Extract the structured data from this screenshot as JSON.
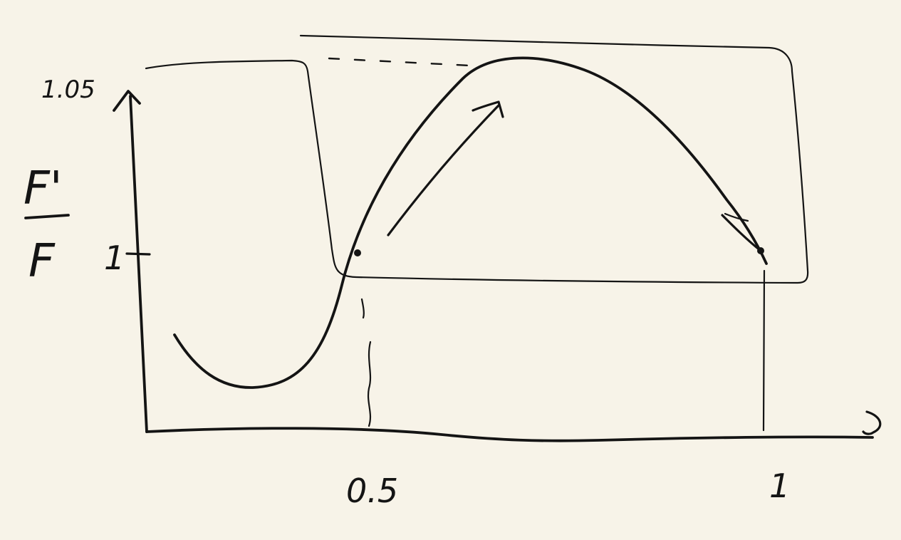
{
  "axis": {
    "y_label_top": "F'",
    "y_label_bottom": "F",
    "y_tick_top": "1.05",
    "y_tick_mid": "1",
    "x_tick_left": "0.5",
    "x_tick_right": "1"
  },
  "colors": {
    "background": "#f7f3e8",
    "ink": "#141414"
  }
}
